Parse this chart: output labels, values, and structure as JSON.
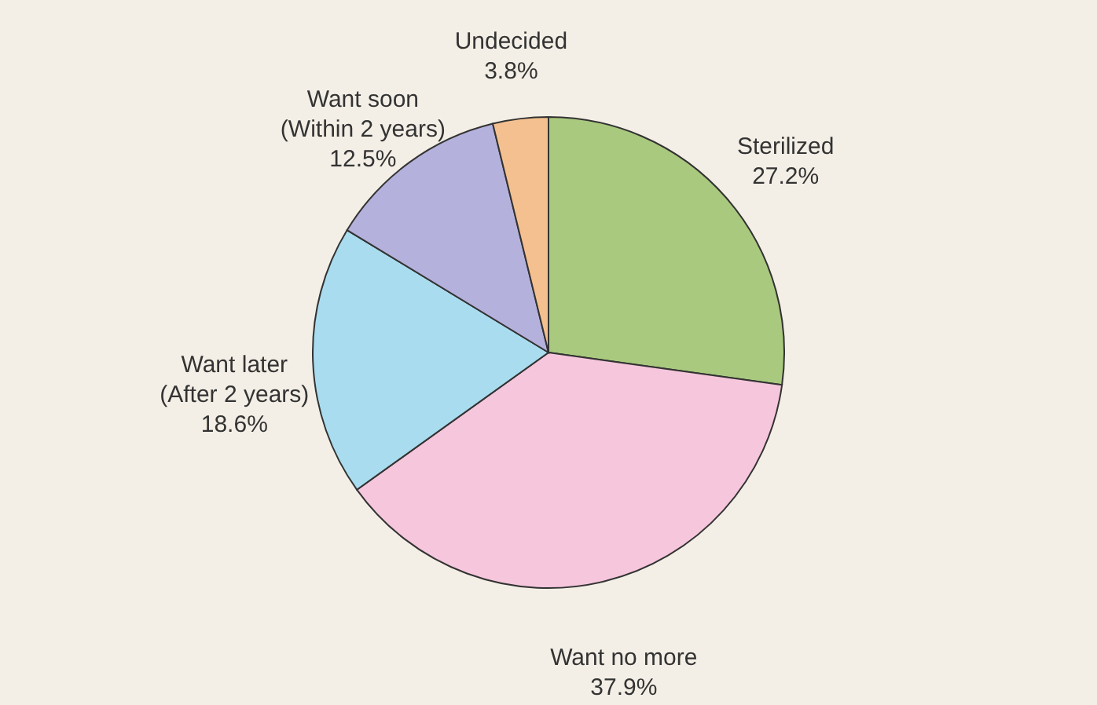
{
  "chart_data": {
    "type": "pie",
    "categories": [
      "Sterilized",
      "Want no more",
      "Want later\n(After 2 years)",
      "Want soon\n(Within 2 years)",
      "Undecided"
    ],
    "values": [
      27.2,
      37.9,
      18.6,
      12.5,
      3.8
    ],
    "colors": [
      "#a9c97f",
      "#f5c6dc",
      "#a9dcef",
      "#b4b1dc",
      "#f4c08f"
    ],
    "value_labels": [
      "27.2%",
      "37.9%",
      "18.6%",
      "12.5%",
      "3.8%"
    ],
    "legend": false
  }
}
